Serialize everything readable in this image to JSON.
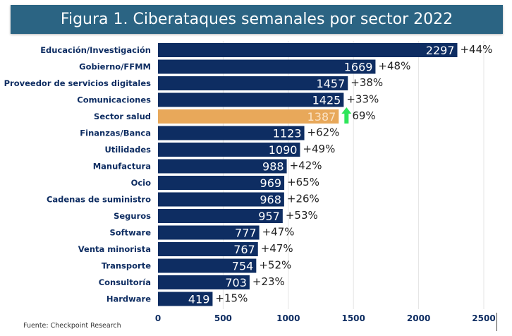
{
  "chart_data": {
    "type": "bar",
    "orientation": "horizontal",
    "title": "Figura 1. Ciberataques semanales por sector 2022",
    "categories": [
      "Educación/Investigación",
      "Gobierno/FFMM",
      "Proveedor de servicios digitales",
      "Comunicaciones",
      "Sector salud",
      "Finanzas/Banca",
      "Utilidades",
      "Manufactura",
      "Ocio",
      "Cadenas de suministro",
      "Seguros",
      "Software",
      "Venta minorista",
      "Transporte",
      "Consultoría",
      "Hardware"
    ],
    "values": [
      2297,
      1669,
      1457,
      1425,
      1387,
      1123,
      1090,
      988,
      969,
      968,
      957,
      777,
      767,
      754,
      703,
      419
    ],
    "changes": [
      "+44%",
      "+48%",
      "+38%",
      "+33%",
      "69%",
      "+62%",
      "+49%",
      "+42%",
      "+65%",
      "+26%",
      "+53%",
      "+47%",
      "+47%",
      "+52%",
      "+23%",
      "+15%"
    ],
    "highlight_index": 4,
    "highlight_icon": "green-up-arrow-icon",
    "xlim": [
      0,
      2600
    ],
    "xticks": [
      0,
      500,
      1000,
      1500,
      2000,
      2500
    ],
    "grid": true,
    "colors": {
      "bar": "#0e2d62",
      "highlight": "#e8a85a",
      "arrow": "#2ee65a",
      "title_bg": "#2b6483"
    },
    "source": "Fuente: Checkpoint Research"
  }
}
